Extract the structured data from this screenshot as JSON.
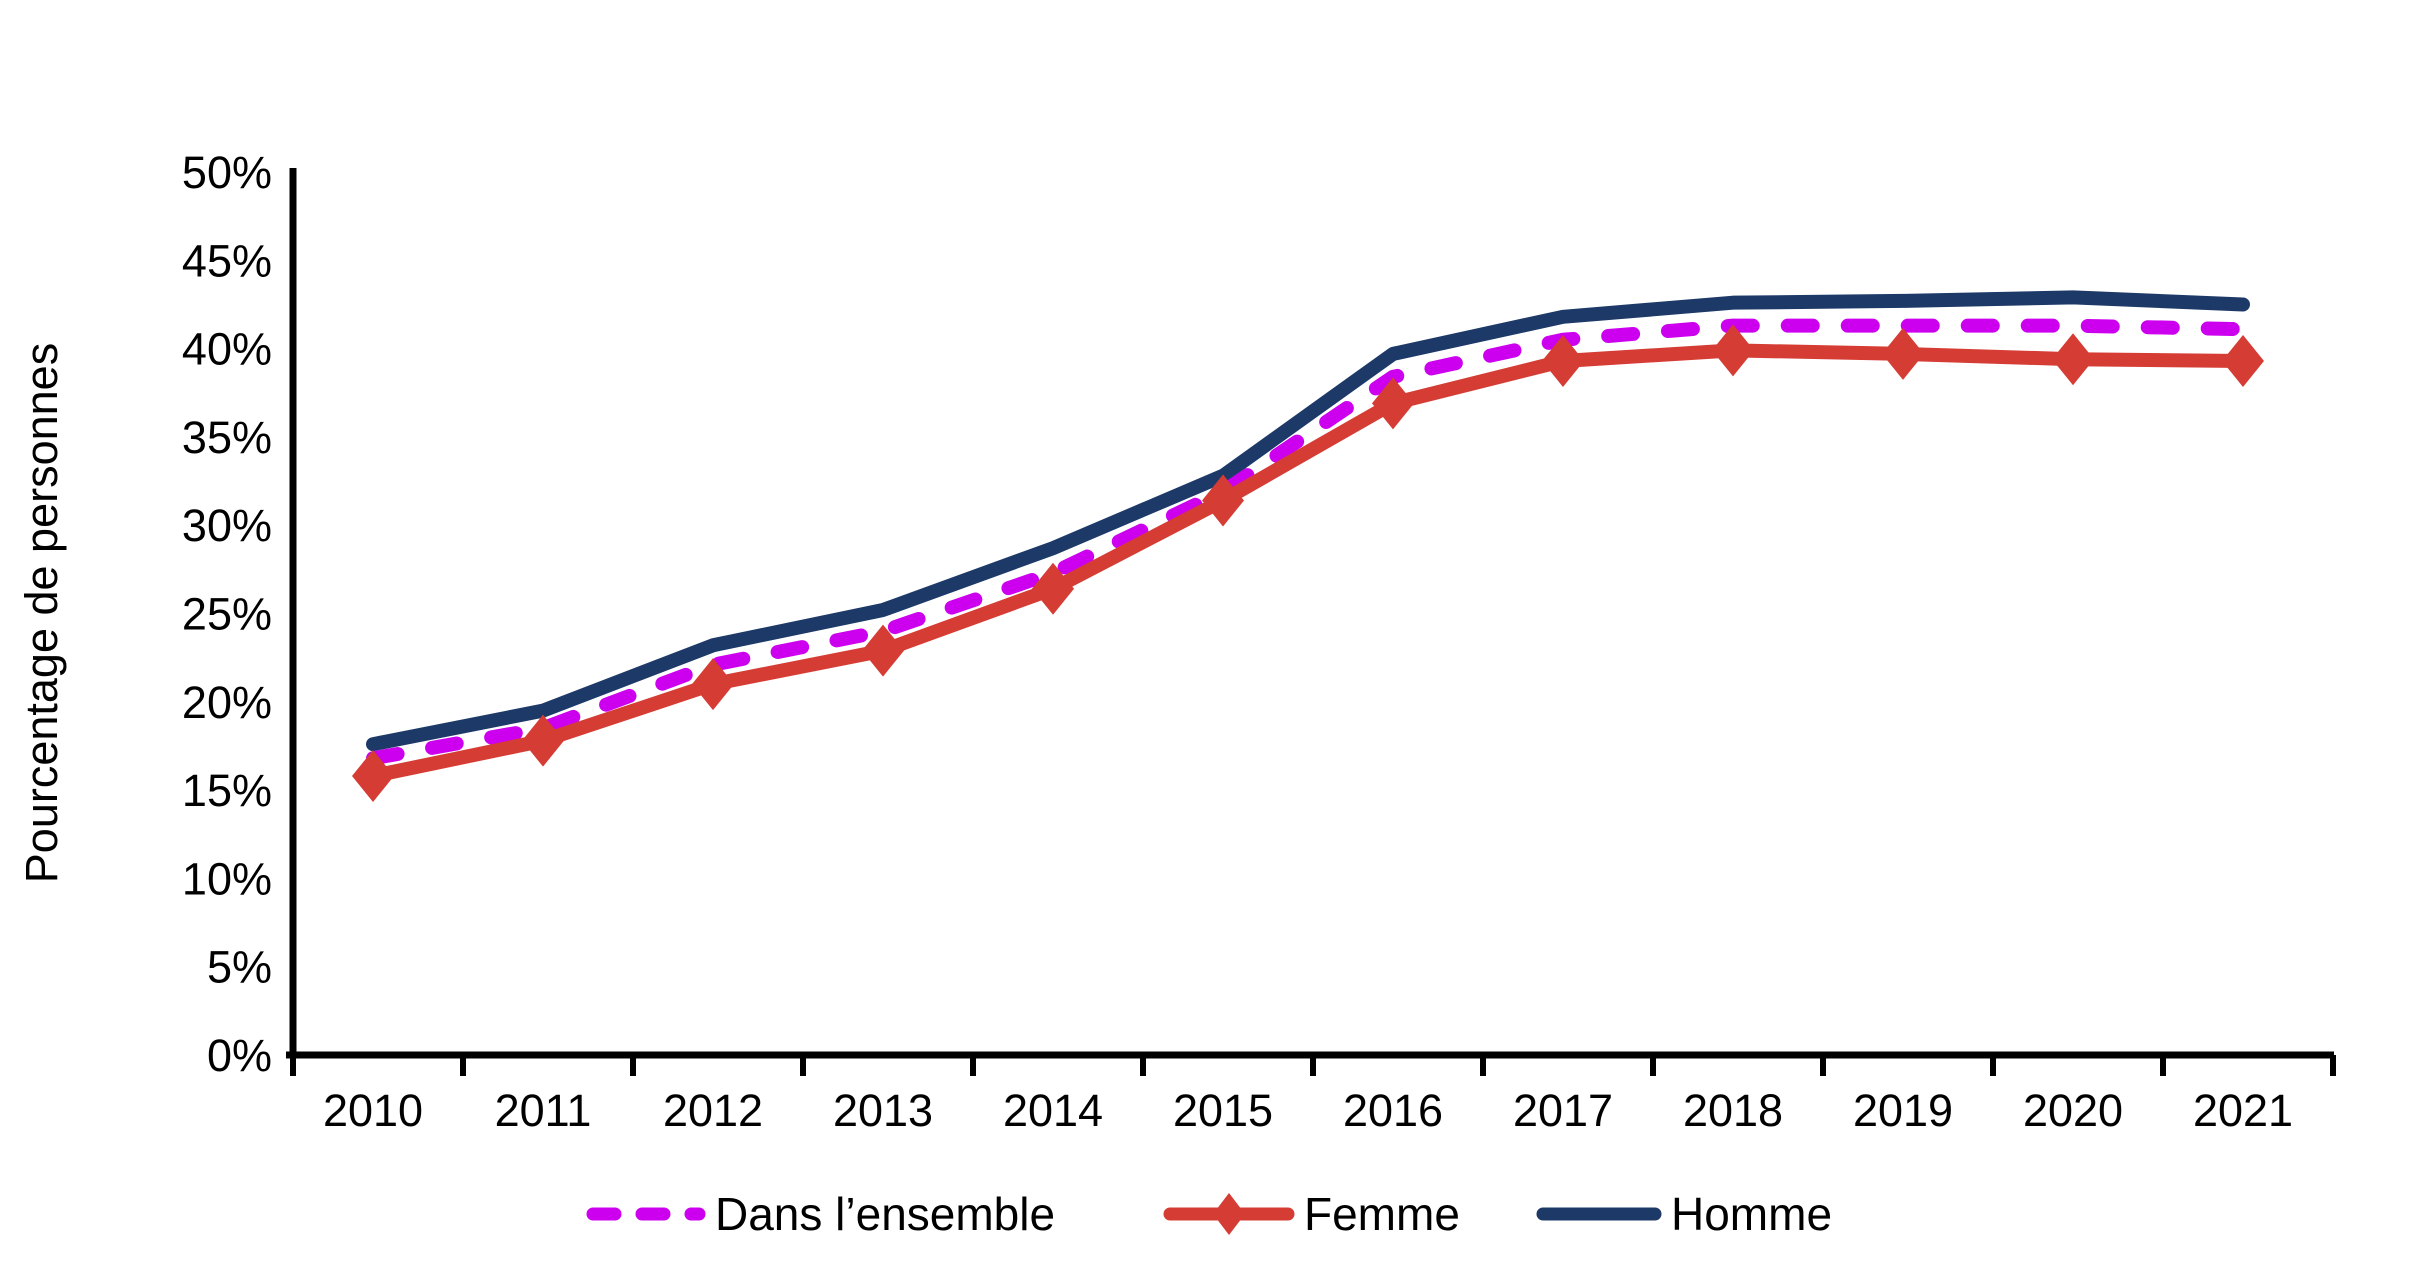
{
  "chart_data": {
    "type": "line",
    "title": "",
    "xlabel": "",
    "ylabel": "Pourcentage de personnes",
    "x": [
      "2010",
      "2011",
      "2012",
      "2013",
      "2014",
      "2015",
      "2016",
      "2017",
      "2018",
      "2019",
      "2020",
      "2021"
    ],
    "ylim": [
      0,
      50
    ],
    "y_tick_labels": [
      "0%",
      "5%",
      "10%",
      "15%",
      "20%",
      "25%",
      "30%",
      "35%",
      "40%",
      "45%",
      "50%"
    ],
    "grid": false,
    "legend_position": "bottom",
    "axis_color": "#000000",
    "series": [
      {
        "name": "Dans l’ensemble",
        "color": "#CC00EE",
        "style": "dashed",
        "marker": "none",
        "values": [
          16.8,
          18.5,
          22.1,
          24.0,
          27.3,
          31.9,
          38.4,
          40.5,
          41.3,
          41.3,
          41.3,
          41.1
        ]
      },
      {
        "name": "Femme",
        "color": "#D53C34",
        "style": "solid",
        "marker": "diamond",
        "values": [
          15.8,
          17.8,
          21.0,
          22.9,
          26.4,
          31.4,
          36.9,
          39.3,
          39.9,
          39.7,
          39.4,
          39.3
        ]
      },
      {
        "name": "Homme",
        "color": "#1C3968",
        "style": "solid",
        "marker": "none",
        "values": [
          17.6,
          19.5,
          23.2,
          25.2,
          28.7,
          32.8,
          39.7,
          41.8,
          42.6,
          42.7,
          42.9,
          42.5
        ]
      }
    ]
  }
}
